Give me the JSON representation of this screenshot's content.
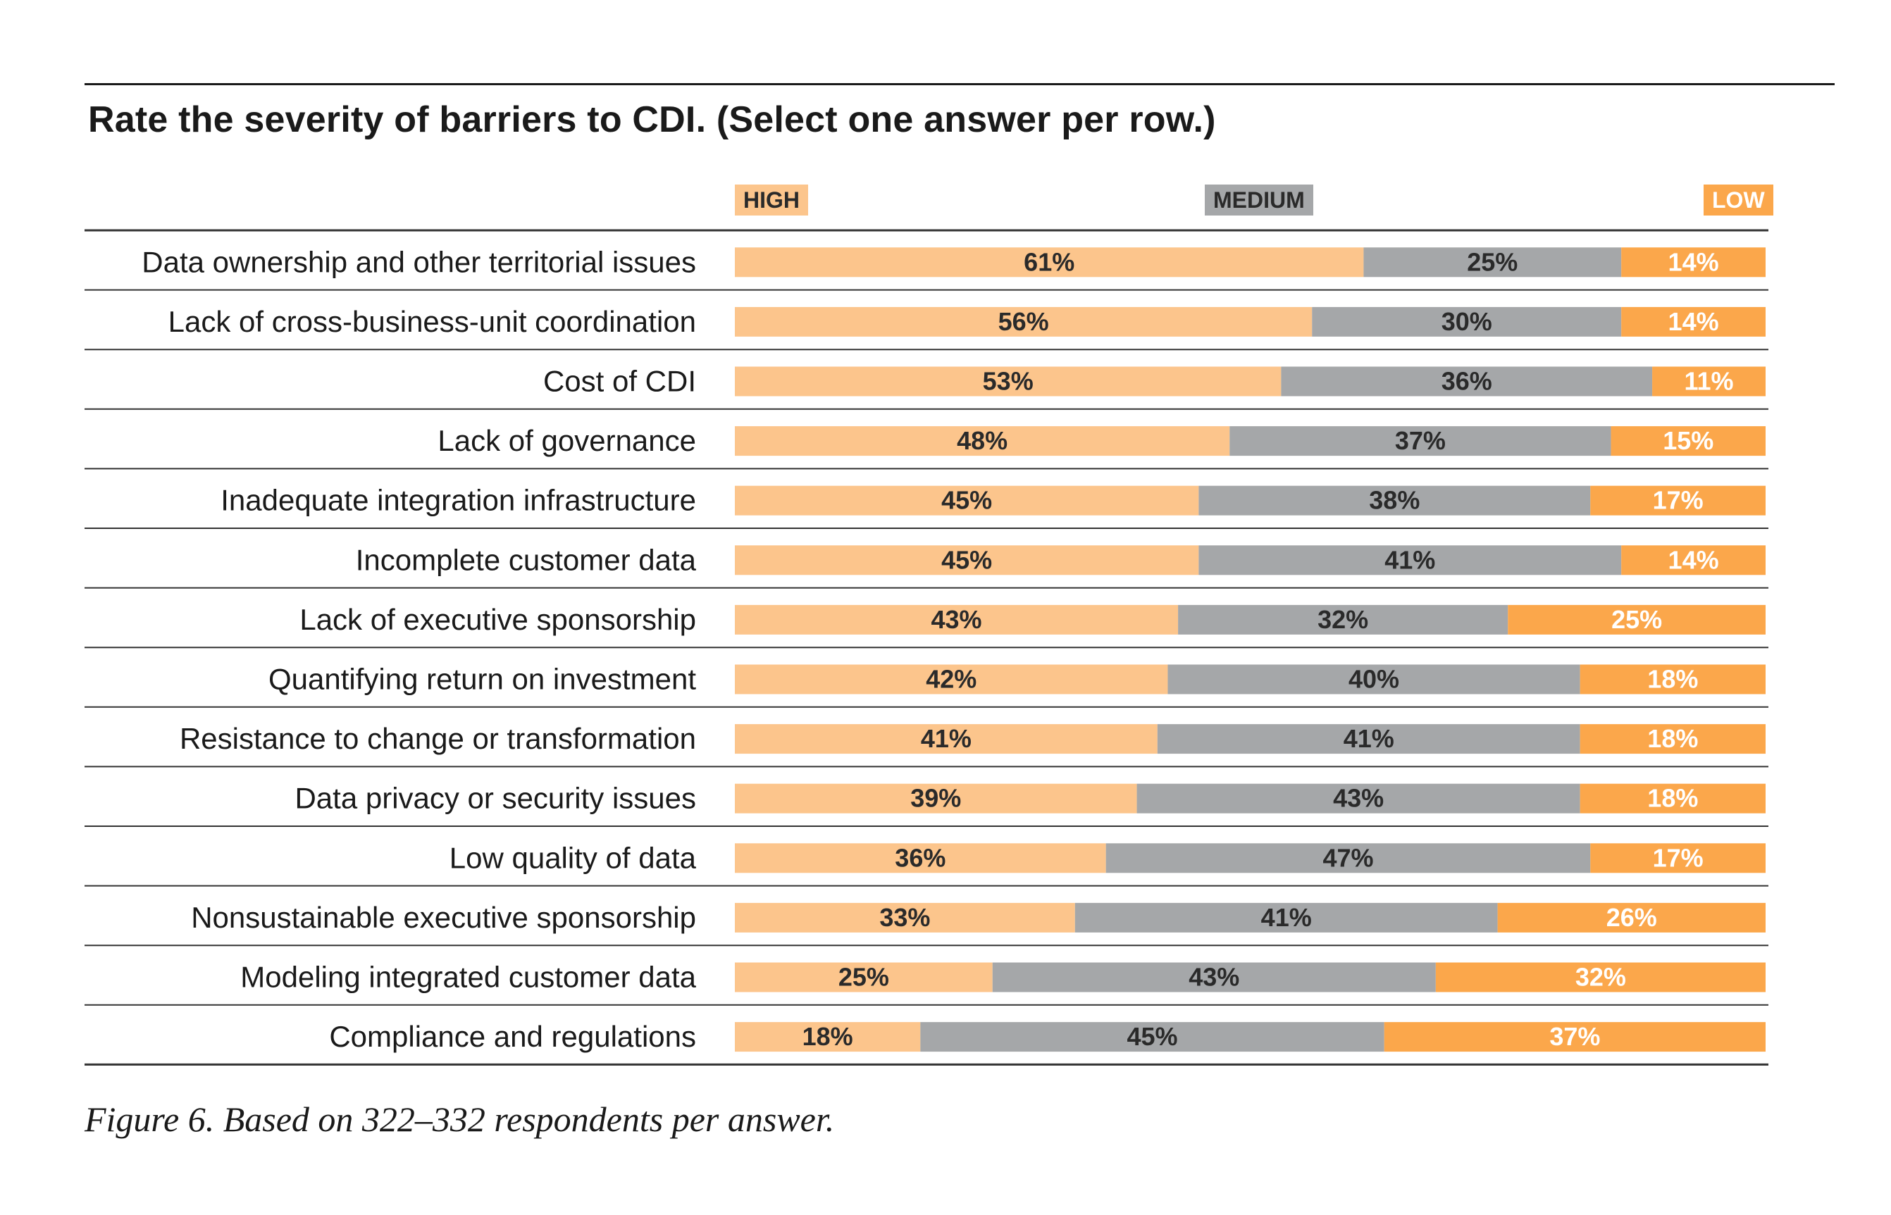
{
  "chart_data": {
    "type": "stacked-bar-horizontal",
    "title": "Rate the severity of barriers to CDI. (Select one answer per row.)",
    "legend": [
      {
        "name": "HIGH",
        "color": "#fcc58c"
      },
      {
        "name": "MEDIUM",
        "color": "#a5a7a9"
      },
      {
        "name": "LOW",
        "color": "#fba74b"
      }
    ],
    "categories": [
      "Data ownership and other territorial issues",
      "Lack of cross-business-unit coordination",
      "Cost of CDI",
      "Lack of governance",
      "Inadequate integration infrastructure",
      "Incomplete customer data",
      "Lack of executive sponsorship",
      "Quantifying return on investment",
      "Resistance to change or transformation",
      "Data privacy or security issues",
      "Low quality of data",
      "Nonsustainable executive sponsorship",
      "Modeling integrated customer data",
      "Compliance and regulations"
    ],
    "series": [
      {
        "name": "HIGH",
        "values": [
          61,
          56,
          53,
          48,
          45,
          45,
          43,
          42,
          41,
          39,
          36,
          33,
          25,
          18
        ]
      },
      {
        "name": "MEDIUM",
        "values": [
          25,
          30,
          36,
          37,
          38,
          41,
          32,
          40,
          41,
          43,
          47,
          41,
          43,
          45
        ]
      },
      {
        "name": "LOW",
        "values": [
          14,
          14,
          11,
          15,
          17,
          14,
          25,
          18,
          18,
          18,
          17,
          26,
          32,
          37
        ]
      }
    ],
    "value_suffix": "%",
    "xlim": [
      0,
      100
    ]
  },
  "caption": "Figure 6. Based on 322–332 respondents per answer."
}
